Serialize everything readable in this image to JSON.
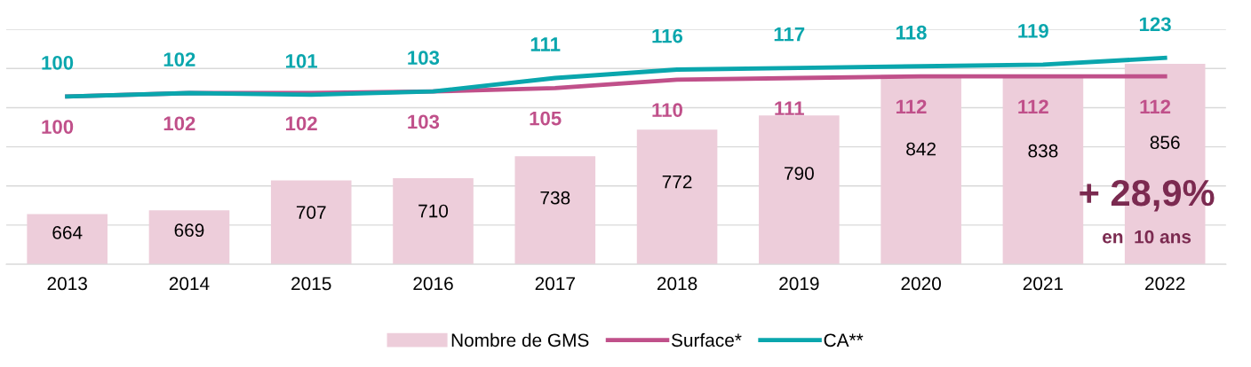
{
  "chart_data": {
    "type": "bar",
    "categories": [
      "2013",
      "2014",
      "2015",
      "2016",
      "2017",
      "2018",
      "2019",
      "2020",
      "2021",
      "2022"
    ],
    "series": [
      {
        "name": "Nombre de GMS",
        "color": "#edcdda",
        "values": [
          664,
          669,
          707,
          710,
          738,
          772,
          790,
          842,
          838,
          856
        ]
      },
      {
        "name": "Surface*",
        "type": "line",
        "axis": "y2",
        "color": "#c0508a",
        "values": [
          100,
          102,
          102,
          103,
          105,
          110,
          111,
          112,
          112,
          112
        ]
      },
      {
        "name": "CA**",
        "type": "line",
        "axis": "y2",
        "color": "#0aa6ad",
        "values": [
          100,
          102,
          101,
          103,
          111,
          116,
          117,
          118,
          119,
          123
        ]
      }
    ],
    "ylim": [
      600,
      900
    ],
    "yticks": [
      {
        "value": 600,
        "label": null
      },
      {
        "value": 650,
        "label": null
      },
      {
        "value": 700,
        "label": null
      },
      {
        "value": 750,
        "label": null
      },
      {
        "value": 800,
        "label": null
      },
      {
        "value": 850,
        "label": null
      },
      {
        "value": 900,
        "label": null
      }
    ],
    "y2lim": [
      0,
      140
    ],
    "tick_labels": "x",
    "grid": "y",
    "legend": "bottom",
    "data_labels": true,
    "annotations": [
      "+ 28,9%",
      "en  10 ans"
    ]
  }
}
